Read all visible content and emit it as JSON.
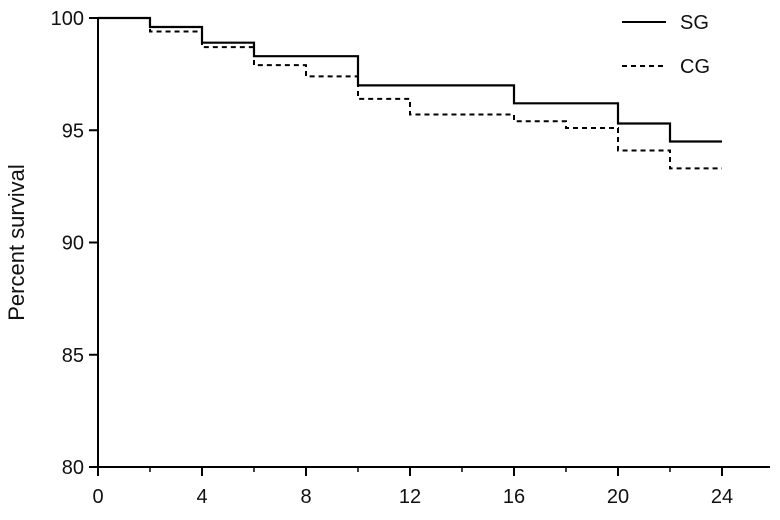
{
  "chart_data": {
    "type": "line",
    "step": true,
    "title": "",
    "xlabel": "",
    "ylabel": "Percent survival",
    "xlim": [
      0,
      25
    ],
    "ylim": [
      80,
      100
    ],
    "x_ticks": [
      0,
      4,
      8,
      12,
      16,
      20,
      24
    ],
    "y_ticks": [
      80,
      85,
      90,
      95,
      100
    ],
    "grid": false,
    "legend_position": "top-right",
    "series": [
      {
        "name": "SG",
        "line_style": "solid",
        "color": "#000000",
        "x": [
          0,
          2,
          4,
          6,
          10,
          16,
          20,
          22,
          24
        ],
        "y": [
          100,
          99.6,
          98.9,
          98.3,
          97.0,
          96.2,
          95.3,
          94.5,
          94.5
        ]
      },
      {
        "name": "CG",
        "line_style": "dashed",
        "color": "#000000",
        "x": [
          0,
          2,
          4,
          6,
          8,
          10,
          12,
          16,
          18,
          20,
          22,
          24
        ],
        "y": [
          100,
          99.4,
          98.7,
          97.9,
          97.4,
          96.4,
          95.7,
          95.4,
          95.1,
          94.1,
          93.3,
          93.3
        ]
      }
    ]
  }
}
